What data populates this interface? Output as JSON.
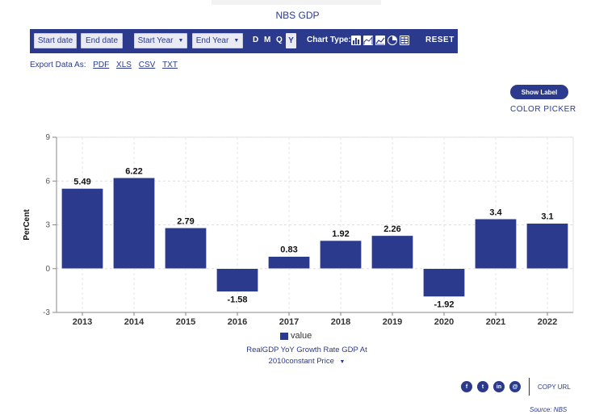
{
  "header": {
    "title": "NBS GDP"
  },
  "toolbar": {
    "start_date": "Start date",
    "end_date": "End date",
    "start_year": "Start Year",
    "end_year": "End Year",
    "periods": [
      "D",
      "M",
      "Q",
      "Y"
    ],
    "active_period": "Y",
    "chart_type_label": "Chart Type:",
    "chart_type_icons": [
      "bar-chart-icon",
      "area-chart-icon",
      "line-chart-icon",
      "pie-chart-icon",
      "table-icon"
    ],
    "reset": "RESET"
  },
  "export": {
    "label": "Export Data As:",
    "formats": [
      "PDF",
      "XLS",
      "CSV",
      "TXT"
    ]
  },
  "controls": {
    "show_label": "Show Label",
    "color_picker": "COLOR PICKER"
  },
  "chart_data": {
    "type": "bar",
    "title": "NBS GDP",
    "xlabel": "",
    "ylabel": "PerCent",
    "categories": [
      "2013",
      "2014",
      "2015",
      "2016",
      "2017",
      "2018",
      "2019",
      "2020",
      "2021",
      "2022"
    ],
    "series": [
      {
        "name": "value",
        "values": [
          5.49,
          6.22,
          2.79,
          -1.58,
          0.83,
          1.92,
          2.26,
          -1.92,
          3.4,
          3.1
        ]
      }
    ],
    "data_labels": [
      "5.49",
      "6.22",
      "2.79",
      "-1.58",
      "0.83",
      "1.92",
      "2.26",
      "-1.92",
      "3.4",
      "3.1"
    ],
    "ylim": [
      -3,
      9
    ],
    "yticks": [
      -3,
      0,
      3,
      6,
      9
    ],
    "grid": true,
    "legend": "bottom-center",
    "color": "#2b3a8c"
  },
  "legend": {
    "label": "value"
  },
  "series_description": {
    "line1": "RealGDP YoY Growth Rate GDP At",
    "line2": "2010constant Price"
  },
  "share": {
    "icons": [
      "facebook-icon",
      "twitter-icon",
      "linkedin-icon",
      "email-icon"
    ],
    "copy_url": "COPY URL"
  },
  "footer": {
    "source": "Source: NBS"
  }
}
